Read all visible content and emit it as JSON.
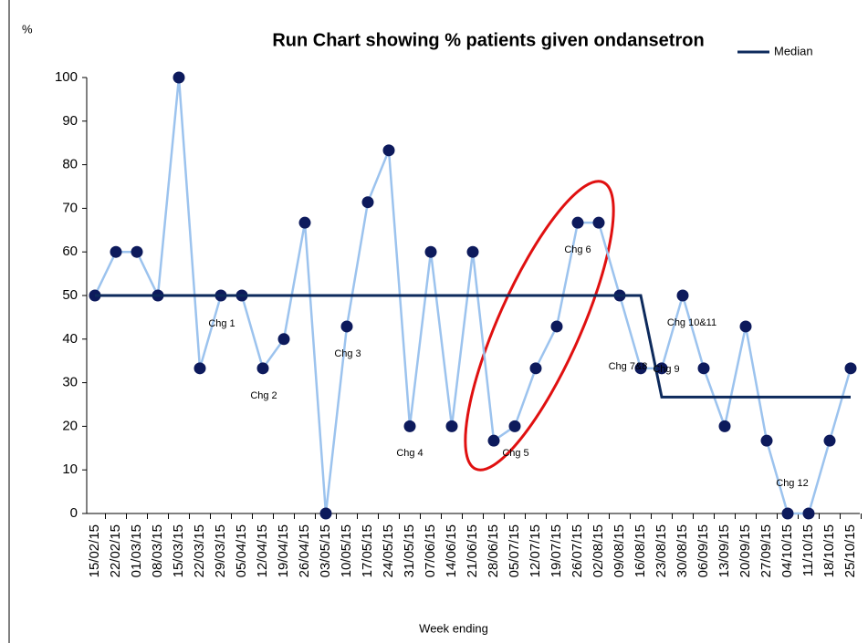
{
  "chart_data": {
    "type": "line",
    "title": "Run Chart showing % patients given ondansetron",
    "y_label": "%",
    "x_label": "Week ending",
    "categories": [
      "15/02/15",
      "22/02/15",
      "01/03/15",
      "08/03/15",
      "15/03/15",
      "22/03/15",
      "29/03/15",
      "05/04/15",
      "12/04/15",
      "19/04/15",
      "26/04/15",
      "03/05/15",
      "10/05/15",
      "17/05/15",
      "24/05/15",
      "31/05/15",
      "07/06/15",
      "14/06/15",
      "21/06/15",
      "28/06/15",
      "05/07/15",
      "12/07/15",
      "19/07/15",
      "26/07/15",
      "02/08/15",
      "09/08/15",
      "16/08/15",
      "23/08/15",
      "30/08/15",
      "06/09/15",
      "13/09/15",
      "20/09/15",
      "27/09/15",
      "04/10/15",
      "11/10/15",
      "18/10/15",
      "25/10/15"
    ],
    "series": [
      {
        "color": "#9cc3ee",
        "marker_color": "#0d1a5c",
        "values": [
          50,
          60,
          60,
          50,
          100,
          33.3,
          50,
          50,
          33.3,
          40,
          66.7,
          0,
          42.9,
          71.4,
          83.3,
          20,
          60,
          20,
          60,
          16.7,
          20,
          33.3,
          42.9,
          66.7,
          66.7,
          50,
          33.3,
          33.3,
          50,
          33.3,
          20,
          42.9,
          16.7,
          0,
          0,
          16.7,
          33.3
        ]
      },
      {
        "name": "Median",
        "color": "#0d2a5c",
        "values": [
          50,
          50,
          50,
          50,
          50,
          50,
          50,
          50,
          50,
          50,
          50,
          50,
          50,
          50,
          50,
          50,
          50,
          50,
          50,
          50,
          50,
          50,
          50,
          50,
          50,
          50,
          50,
          26.7,
          26.7,
          26.7,
          26.7,
          26.7,
          26.7,
          26.7,
          26.7,
          26.7,
          26.7
        ]
      }
    ],
    "annotations": [
      "Chg 1",
      "Chg 2",
      "Chg 3",
      "Chg 4",
      "Chg 5",
      "Chg 6",
      "Chg 7&8",
      "Chg 9",
      "Chg 10&11",
      "Chg 12"
    ],
    "ylim": [
      0,
      100
    ],
    "yticks": [
      0,
      10,
      20,
      30,
      40,
      50,
      60,
      70,
      80,
      90,
      100
    ]
  }
}
